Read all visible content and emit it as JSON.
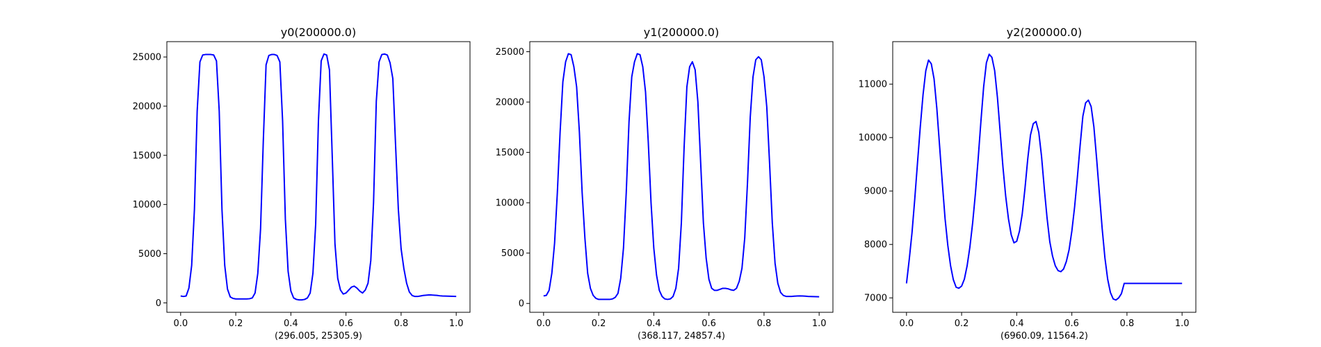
{
  "figure": {
    "background": "#ffffff",
    "line_color": "#0000ff"
  },
  "chart_data": [
    {
      "type": "line",
      "title": "y0(200000.0)",
      "xlabel": "(296.005, 25305.9)",
      "ylabel": "",
      "xlim": [
        -0.05,
        1.05
      ],
      "ylim": [
        -960,
        26560
      ],
      "xticks": [
        0.0,
        0.2,
        0.4,
        0.6,
        0.8,
        1.0
      ],
      "xtick_labels": [
        "0.0",
        "0.2",
        "0.4",
        "0.6",
        "0.8",
        "1.0"
      ],
      "yticks": [
        0,
        5000,
        10000,
        15000,
        20000,
        25000
      ],
      "ytick_labels": [
        "0",
        "5000",
        "10000",
        "15000",
        "20000",
        "25000"
      ],
      "grid": false,
      "series": [
        {
          "color": "#0000ff",
          "x": [
            0.0,
            0.01,
            0.02,
            0.03,
            0.04,
            0.05,
            0.06,
            0.07,
            0.08,
            0.09,
            0.1,
            0.11,
            0.12,
            0.13,
            0.14,
            0.15,
            0.16,
            0.17,
            0.18,
            0.19,
            0.2,
            0.21,
            0.22,
            0.23,
            0.24,
            0.25,
            0.26,
            0.27,
            0.28,
            0.29,
            0.3,
            0.31,
            0.32,
            0.33,
            0.34,
            0.35,
            0.36,
            0.37,
            0.38,
            0.39,
            0.4,
            0.41,
            0.42,
            0.43,
            0.44,
            0.45,
            0.46,
            0.47,
            0.48,
            0.49,
            0.5,
            0.51,
            0.52,
            0.53,
            0.54,
            0.55,
            0.56,
            0.57,
            0.58,
            0.59,
            0.6,
            0.61,
            0.62,
            0.63,
            0.64,
            0.65,
            0.66,
            0.67,
            0.68,
            0.69,
            0.7,
            0.71,
            0.72,
            0.73,
            0.74,
            0.75,
            0.76,
            0.77,
            0.78,
            0.79,
            0.8,
            0.81,
            0.82,
            0.83,
            0.84,
            0.85,
            0.86,
            0.87,
            0.88,
            0.89,
            0.9,
            0.91,
            0.92,
            0.93,
            0.94,
            0.95,
            0.96,
            0.97,
            0.98,
            0.99,
            1.0
          ],
          "y": [
            700,
            650,
            700,
            1500,
            3800,
            9500,
            19500,
            24500,
            25200,
            25250,
            25250,
            25250,
            25200,
            24600,
            19500,
            9500,
            3800,
            1400,
            600,
            450,
            400,
            400,
            400,
            400,
            400,
            420,
            500,
            1000,
            3000,
            7500,
            16500,
            24200,
            25150,
            25250,
            25250,
            25150,
            24500,
            18500,
            8500,
            3200,
            1200,
            500,
            350,
            300,
            300,
            350,
            500,
            1000,
            3000,
            8000,
            18500,
            24600,
            25300,
            25200,
            23700,
            15000,
            6000,
            2500,
            1300,
            900,
            1000,
            1300,
            1600,
            1700,
            1500,
            1200,
            1000,
            1300,
            2000,
            4300,
            10200,
            20500,
            24500,
            25250,
            25300,
            25200,
            24400,
            22800,
            16000,
            9500,
            5500,
            3500,
            2000,
            1100,
            750,
            650,
            650,
            700,
            750,
            780,
            800,
            800,
            780,
            760,
            720,
            700,
            690,
            680,
            670,
            660,
            650
          ]
        }
      ]
    },
    {
      "type": "line",
      "title": "y1(200000.0)",
      "xlabel": "(368.117, 24857.4)",
      "ylabel": "",
      "xlim": [
        -0.05,
        1.05
      ],
      "ylim": [
        -880,
        26000
      ],
      "xticks": [
        0.0,
        0.2,
        0.4,
        0.6,
        0.8,
        1.0
      ],
      "xtick_labels": [
        "0.0",
        "0.2",
        "0.4",
        "0.6",
        "0.8",
        "1.0"
      ],
      "yticks": [
        0,
        5000,
        10000,
        15000,
        20000,
        25000
      ],
      "ytick_labels": [
        "0",
        "5000",
        "10000",
        "15000",
        "20000",
        "25000"
      ],
      "grid": false,
      "series": [
        {
          "color": "#0000ff",
          "x": [
            0.0,
            0.01,
            0.02,
            0.03,
            0.04,
            0.05,
            0.06,
            0.07,
            0.08,
            0.09,
            0.1,
            0.11,
            0.12,
            0.13,
            0.14,
            0.15,
            0.16,
            0.17,
            0.18,
            0.19,
            0.2,
            0.21,
            0.22,
            0.23,
            0.24,
            0.25,
            0.26,
            0.27,
            0.28,
            0.29,
            0.3,
            0.31,
            0.32,
            0.33,
            0.34,
            0.35,
            0.36,
            0.37,
            0.38,
            0.39,
            0.4,
            0.41,
            0.42,
            0.43,
            0.44,
            0.45,
            0.46,
            0.47,
            0.48,
            0.49,
            0.5,
            0.51,
            0.52,
            0.53,
            0.54,
            0.55,
            0.56,
            0.57,
            0.58,
            0.59,
            0.6,
            0.61,
            0.62,
            0.63,
            0.64,
            0.65,
            0.66,
            0.67,
            0.68,
            0.69,
            0.7,
            0.71,
            0.72,
            0.73,
            0.74,
            0.75,
            0.76,
            0.77,
            0.78,
            0.79,
            0.8,
            0.81,
            0.82,
            0.83,
            0.84,
            0.85,
            0.86,
            0.87,
            0.88,
            0.89,
            0.9,
            0.91,
            0.92,
            0.93,
            0.94,
            0.95,
            0.96,
            0.97,
            0.98,
            0.99,
            1.0
          ],
          "y": [
            750,
            800,
            1300,
            3000,
            6000,
            11000,
            17000,
            22000,
            24000,
            24800,
            24700,
            23500,
            21500,
            17000,
            11000,
            6500,
            3000,
            1500,
            800,
            500,
            400,
            400,
            400,
            400,
            400,
            450,
            600,
            1000,
            2500,
            5500,
            11000,
            18000,
            22500,
            24000,
            24800,
            24700,
            23500,
            21000,
            16000,
            10000,
            5500,
            2800,
            1300,
            700,
            450,
            400,
            450,
            700,
            1500,
            3500,
            8000,
            15500,
            21500,
            23500,
            24000,
            23200,
            20000,
            14000,
            8000,
            4500,
            2400,
            1500,
            1300,
            1300,
            1400,
            1500,
            1500,
            1450,
            1350,
            1300,
            1500,
            2200,
            3500,
            6500,
            12000,
            18500,
            22500,
            24200,
            24500,
            24200,
            22500,
            19500,
            14000,
            8000,
            4000,
            2000,
            1100,
            800,
            700,
            700,
            700,
            720,
            740,
            750,
            740,
            720,
            700,
            690,
            680,
            670,
            660
          ]
        }
      ]
    },
    {
      "type": "line",
      "title": "y2(200000.0)",
      "xlabel": "(6960.09, 11564.2)",
      "ylabel": "",
      "xlim": [
        -0.05,
        1.05
      ],
      "ylim": [
        6730,
        11795
      ],
      "xticks": [
        0.0,
        0.2,
        0.4,
        0.6,
        0.8,
        1.0
      ],
      "xtick_labels": [
        "0.0",
        "0.2",
        "0.4",
        "0.6",
        "0.8",
        "1.0"
      ],
      "yticks": [
        7000,
        8000,
        9000,
        10000,
        11000
      ],
      "ytick_labels": [
        "7000",
        "8000",
        "9000",
        "10000",
        "11000"
      ],
      "grid": false,
      "series": [
        {
          "color": "#0000ff",
          "x": [
            0.0,
            0.01,
            0.02,
            0.03,
            0.04,
            0.05,
            0.06,
            0.07,
            0.08,
            0.09,
            0.1,
            0.11,
            0.12,
            0.13,
            0.14,
            0.15,
            0.16,
            0.17,
            0.18,
            0.19,
            0.2,
            0.21,
            0.22,
            0.23,
            0.24,
            0.25,
            0.26,
            0.27,
            0.28,
            0.29,
            0.3,
            0.31,
            0.32,
            0.33,
            0.34,
            0.35,
            0.36,
            0.37,
            0.38,
            0.39,
            0.4,
            0.41,
            0.42,
            0.43,
            0.44,
            0.45,
            0.46,
            0.47,
            0.48,
            0.49,
            0.5,
            0.51,
            0.52,
            0.53,
            0.54,
            0.55,
            0.56,
            0.57,
            0.58,
            0.59,
            0.6,
            0.61,
            0.62,
            0.63,
            0.64,
            0.65,
            0.66,
            0.67,
            0.68,
            0.69,
            0.7,
            0.71,
            0.72,
            0.73,
            0.74,
            0.75,
            0.76,
            0.77,
            0.78,
            0.79,
            0.8,
            0.81,
            0.82,
            0.83,
            0.84,
            0.85,
            0.86,
            0.87,
            0.88,
            0.89,
            0.9,
            0.91,
            0.92,
            0.93,
            0.94,
            0.95,
            0.96,
            0.97,
            0.98,
            0.99,
            1.0
          ],
          "y": [
            7270,
            7720,
            8220,
            8850,
            9530,
            10200,
            10800,
            11250,
            11450,
            11380,
            11100,
            10550,
            9850,
            9150,
            8480,
            7980,
            7600,
            7340,
            7200,
            7180,
            7220,
            7350,
            7600,
            7950,
            8400,
            8950,
            9600,
            10300,
            10950,
            11400,
            11560,
            11500,
            11250,
            10750,
            10100,
            9450,
            8900,
            8480,
            8180,
            8030,
            8060,
            8250,
            8570,
            9050,
            9600,
            10050,
            10260,
            10300,
            10100,
            9650,
            9050,
            8500,
            8050,
            7780,
            7600,
            7510,
            7490,
            7540,
            7680,
            7900,
            8250,
            8700,
            9250,
            9850,
            10400,
            10650,
            10700,
            10580,
            10200,
            9600,
            8950,
            8300,
            7750,
            7350,
            7100,
            6980,
            6960,
            7000,
            7080,
            7270,
            7270,
            7270,
            7270,
            7270,
            7270,
            7270,
            7270,
            7270,
            7270,
            7270,
            7270,
            7270,
            7270,
            7270,
            7270,
            7270,
            7270,
            7270,
            7270,
            7270,
            7270
          ]
        }
      ]
    }
  ]
}
